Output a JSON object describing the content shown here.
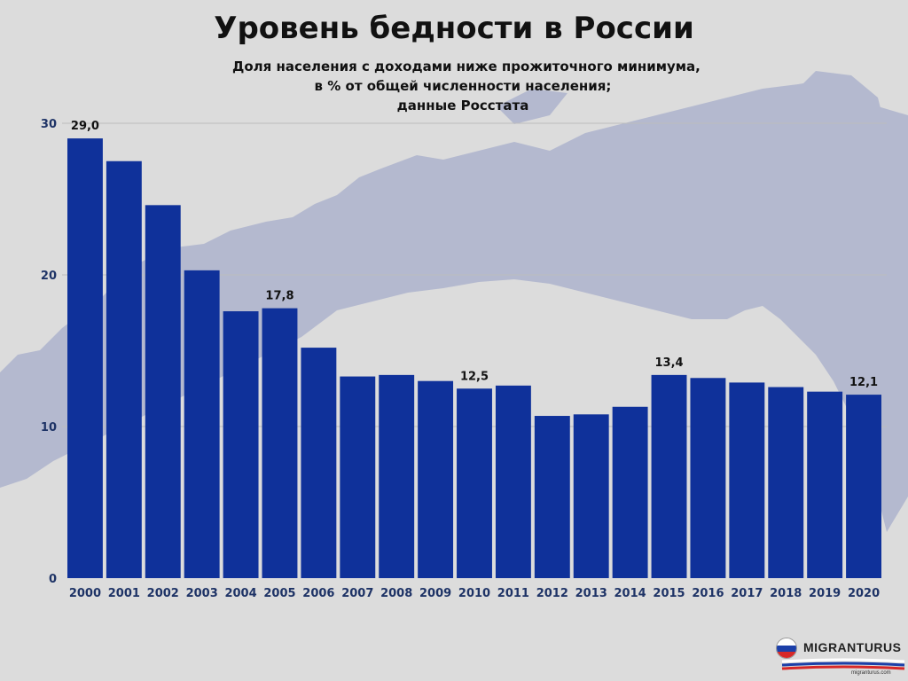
{
  "title": "Уровень бедности в России",
  "subtitle_lines": [
    "Доля населения с доходами ниже прожиточного минимума,",
    "в % от общей численности населения;",
    "данные Росстата"
  ],
  "colors": {
    "bar": "#0f319a",
    "background": "#dcdcdc",
    "map": "#b4b9cf",
    "grid": "#bdbdbd",
    "tick_text": "#1e3366"
  },
  "chart_data": {
    "type": "bar",
    "title": "Уровень бедности в России",
    "categories": [
      "2000",
      "2001",
      "2002",
      "2003",
      "2004",
      "2005",
      "2006",
      "2007",
      "2008",
      "2009",
      "2010",
      "2011",
      "2012",
      "2013",
      "2014",
      "2015",
      "2016",
      "2017",
      "2018",
      "2019",
      "2020"
    ],
    "values": [
      29.0,
      27.5,
      24.6,
      20.3,
      17.6,
      17.8,
      15.2,
      13.3,
      13.4,
      13.0,
      12.5,
      12.7,
      10.7,
      10.8,
      11.3,
      13.4,
      13.2,
      12.9,
      12.6,
      12.3,
      12.1
    ],
    "data_labels": {
      "0": "29,0",
      "5": "17,8",
      "10": "12,5",
      "15": "13,4",
      "20": "12,1"
    },
    "yticks": [
      0,
      10,
      20,
      30
    ],
    "ylim": [
      0,
      30
    ],
    "xlabel": "",
    "ylabel": "",
    "grid": true
  },
  "logo": {
    "name": "MIGRANTURUS",
    "url": "migranturus.com"
  }
}
